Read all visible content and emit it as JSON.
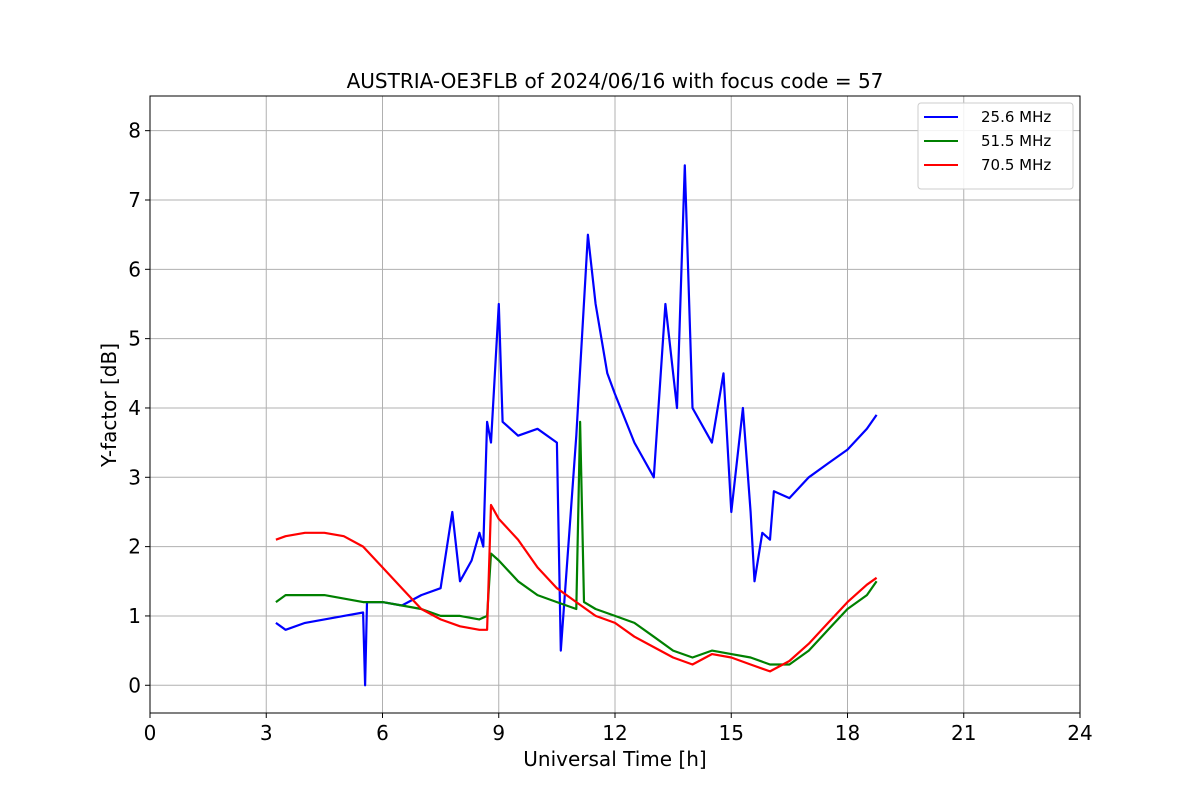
{
  "chart_data": {
    "type": "line",
    "title": "AUSTRIA-OE3FLB of 2024/06/16 with focus code = 57",
    "xlabel": "Universal Time [h]",
    "ylabel": "Y-factor [dB]",
    "xlim": [
      0,
      24
    ],
    "ylim": [
      -0.4,
      8.5
    ],
    "xticks": [
      "0",
      "3",
      "6",
      "9",
      "12",
      "15",
      "18",
      "21",
      "24"
    ],
    "yticks": [
      "0",
      "1",
      "2",
      "3",
      "4",
      "5",
      "6",
      "7",
      "8"
    ],
    "grid": true,
    "legend_position": "top-right",
    "series": [
      {
        "name": "25.6 MHz",
        "color": "#0000ff",
        "x": [
          3.25,
          3.5,
          4.0,
          4.5,
          5.0,
          5.5,
          5.55,
          5.6,
          6.0,
          6.5,
          7.0,
          7.5,
          7.8,
          8.0,
          8.3,
          8.5,
          8.6,
          8.7,
          8.8,
          9.0,
          9.1,
          9.5,
          10.0,
          10.5,
          10.6,
          11.0,
          11.3,
          11.5,
          11.8,
          12.0,
          12.5,
          13.0,
          13.3,
          13.6,
          13.8,
          14.0,
          14.5,
          14.8,
          15.0,
          15.3,
          15.5,
          15.6,
          15.8,
          16.0,
          16.1,
          16.5,
          17.0,
          17.5,
          18.0,
          18.5,
          18.75
        ],
        "y": [
          0.9,
          0.8,
          0.9,
          0.95,
          1.0,
          1.05,
          0.0,
          1.2,
          1.2,
          1.15,
          1.3,
          1.4,
          2.5,
          1.5,
          1.8,
          2.2,
          2.0,
          3.8,
          3.5,
          5.5,
          3.8,
          3.6,
          3.7,
          3.5,
          0.5,
          3.6,
          6.5,
          5.5,
          4.5,
          4.2,
          3.5,
          3.0,
          5.5,
          4.0,
          7.5,
          4.0,
          3.5,
          4.5,
          2.5,
          4.0,
          2.5,
          1.5,
          2.2,
          2.1,
          2.8,
          2.7,
          3.0,
          3.2,
          3.4,
          3.7,
          3.9
        ]
      },
      {
        "name": "51.5 MHz",
        "color": "#008000",
        "x": [
          3.25,
          3.5,
          4.0,
          4.5,
          5.0,
          5.5,
          6.0,
          6.5,
          7.0,
          7.5,
          8.0,
          8.5,
          8.7,
          8.8,
          9.0,
          9.5,
          10.0,
          10.5,
          11.0,
          11.1,
          11.2,
          11.5,
          12.0,
          12.5,
          13.0,
          13.5,
          14.0,
          14.5,
          15.0,
          15.5,
          16.0,
          16.5,
          17.0,
          17.5,
          18.0,
          18.5,
          18.75
        ],
        "y": [
          1.2,
          1.3,
          1.3,
          1.3,
          1.25,
          1.2,
          1.2,
          1.15,
          1.1,
          1.0,
          1.0,
          0.95,
          1.0,
          1.9,
          1.8,
          1.5,
          1.3,
          1.2,
          1.1,
          3.8,
          1.2,
          1.1,
          1.0,
          0.9,
          0.7,
          0.5,
          0.4,
          0.5,
          0.45,
          0.4,
          0.3,
          0.3,
          0.5,
          0.8,
          1.1,
          1.3,
          1.5
        ]
      },
      {
        "name": "70.5 MHz",
        "color": "#ff0000",
        "x": [
          3.25,
          3.5,
          4.0,
          4.5,
          5.0,
          5.5,
          6.0,
          6.5,
          7.0,
          7.5,
          8.0,
          8.5,
          8.7,
          8.8,
          9.0,
          9.5,
          10.0,
          10.5,
          11.0,
          11.5,
          12.0,
          12.5,
          13.0,
          13.5,
          14.0,
          14.5,
          15.0,
          15.5,
          16.0,
          16.5,
          17.0,
          17.5,
          18.0,
          18.5,
          18.75
        ],
        "y": [
          2.1,
          2.15,
          2.2,
          2.2,
          2.15,
          2.0,
          1.7,
          1.4,
          1.1,
          0.95,
          0.85,
          0.8,
          0.8,
          2.6,
          2.4,
          2.1,
          1.7,
          1.4,
          1.2,
          1.0,
          0.9,
          0.7,
          0.55,
          0.4,
          0.3,
          0.45,
          0.4,
          0.3,
          0.2,
          0.35,
          0.6,
          0.9,
          1.2,
          1.45,
          1.55
        ]
      }
    ]
  }
}
